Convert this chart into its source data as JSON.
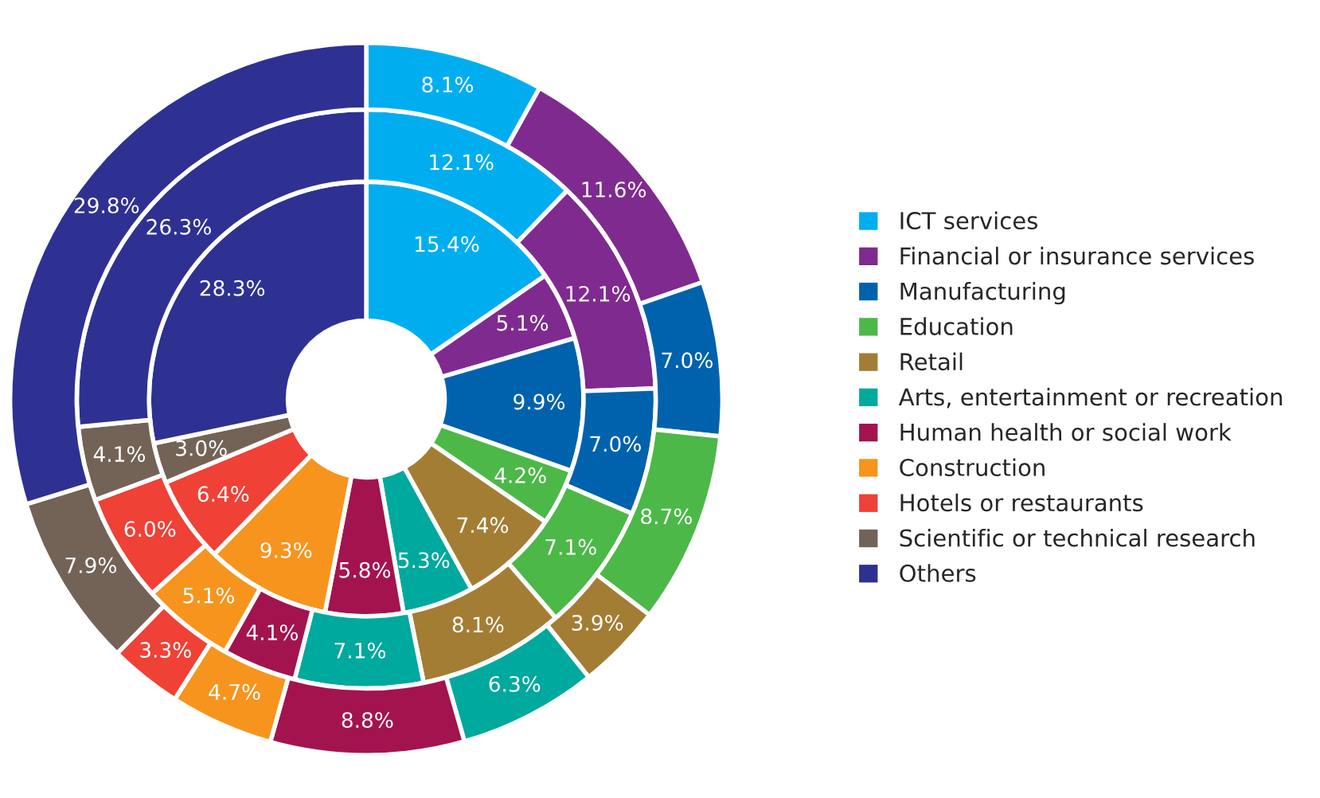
{
  "chart_data": {
    "type": "donut",
    "categories": [
      "ICT services",
      "Financial or insurance services",
      "Manufacturing",
      "Education",
      "Retail",
      "Arts, entertainment or recreation",
      "Human health or social work",
      "Construction",
      "Hotels or restaurants",
      "Scientific or technical research",
      "Others"
    ],
    "colors": [
      "#00aeef",
      "#7f2a8f",
      "#0062ad",
      "#4cb848",
      "#a47d34",
      "#00a99d",
      "#a3144f",
      "#f7941d",
      "#ef4136",
      "#736357",
      "#2e3192"
    ],
    "series": [
      {
        "values": [
          15.4,
          5.1,
          9.9,
          4.2,
          7.4,
          5.3,
          5.8,
          9.3,
          6.4,
          3.0,
          28.3
        ],
        "value_labels": [
          "15.4%",
          "5.1%",
          "9.9%",
          "4.2%",
          "7.4%",
          "5.3%",
          "5.8%",
          "9.3%",
          "6.4%",
          "3.0%",
          "28.3%"
        ]
      },
      {
        "values": [
          12.1,
          12.1,
          7.0,
          7.1,
          8.1,
          7.1,
          4.1,
          5.1,
          6.0,
          4.1,
          26.3
        ],
        "value_labels": [
          "12.1%",
          "12.1%",
          "7.0%",
          "7.1%",
          "8.1%",
          "7.1%",
          "4.1%",
          "5.1%",
          "6.0%",
          "4.1%",
          "26.3%"
        ]
      },
      {
        "values": [
          8.1,
          11.6,
          7.0,
          8.7,
          3.9,
          6.3,
          8.8,
          4.7,
          3.3,
          7.9,
          29.8
        ],
        "value_labels": [
          "8.1%",
          "11.6%",
          "7.0%",
          "8.7%",
          "3.9%",
          "6.3%",
          "8.8%",
          "4.7%",
          "3.3%",
          "7.9%",
          "29.8%"
        ]
      }
    ],
    "legend": "right"
  }
}
